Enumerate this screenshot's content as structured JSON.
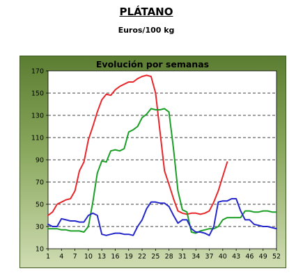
{
  "header": {
    "title": "PLÁTANO",
    "subtitle": "Euros/100 kg"
  },
  "chart_data": {
    "type": "line",
    "title": "Evolución por semanas",
    "xlabel": "",
    "ylabel": "",
    "xlim": [
      1,
      52
    ],
    "ylim": [
      10,
      170
    ],
    "x_ticks": [
      1,
      4,
      7,
      10,
      13,
      16,
      19,
      22,
      25,
      28,
      31,
      34,
      37,
      40,
      43,
      46,
      49,
      52
    ],
    "y_ticks": [
      10,
      30,
      50,
      70,
      90,
      110,
      130,
      150,
      170
    ],
    "grid": true,
    "legend": "none",
    "series": [
      {
        "color": "#e8262a",
        "points": [
          [
            1,
            40
          ],
          [
            2,
            43
          ],
          [
            3,
            50
          ],
          [
            4,
            52
          ],
          [
            5,
            54
          ],
          [
            6,
            55
          ],
          [
            7,
            62
          ],
          [
            8,
            80
          ],
          [
            9,
            88
          ],
          [
            10,
            108
          ],
          [
            11,
            120
          ],
          [
            12,
            133
          ],
          [
            13,
            144
          ],
          [
            14,
            149
          ],
          [
            15,
            148
          ],
          [
            16,
            153
          ],
          [
            17,
            156
          ],
          [
            18,
            158
          ],
          [
            19,
            160
          ],
          [
            20,
            160
          ],
          [
            21,
            163
          ],
          [
            22,
            165
          ],
          [
            23,
            166
          ],
          [
            24,
            165
          ],
          [
            25,
            150
          ],
          [
            26,
            115
          ],
          [
            27,
            80
          ],
          [
            28,
            68
          ],
          [
            29,
            55
          ],
          [
            30,
            44
          ],
          [
            31,
            42
          ],
          [
            32,
            41
          ],
          [
            33,
            42
          ],
          [
            34,
            42
          ],
          [
            35,
            41
          ],
          [
            36,
            42
          ],
          [
            37,
            44
          ],
          [
            38,
            52
          ],
          [
            39,
            62
          ],
          [
            40,
            75
          ],
          [
            41,
            88
          ]
        ]
      },
      {
        "color": "#1a9e25",
        "points": [
          [
            1,
            28
          ],
          [
            2,
            28
          ],
          [
            3,
            28
          ],
          [
            4,
            27
          ],
          [
            5,
            27
          ],
          [
            6,
            26
          ],
          [
            7,
            26
          ],
          [
            8,
            26
          ],
          [
            9,
            25
          ],
          [
            10,
            30
          ],
          [
            11,
            52
          ],
          [
            12,
            78
          ],
          [
            13,
            89
          ],
          [
            14,
            88
          ],
          [
            15,
            98
          ],
          [
            16,
            99
          ],
          [
            17,
            98
          ],
          [
            18,
            100
          ],
          [
            19,
            115
          ],
          [
            20,
            117
          ],
          [
            21,
            120
          ],
          [
            22,
            128
          ],
          [
            23,
            131
          ],
          [
            24,
            136
          ],
          [
            25,
            135
          ],
          [
            26,
            135
          ],
          [
            27,
            136
          ],
          [
            28,
            133
          ],
          [
            29,
            100
          ],
          [
            30,
            62
          ],
          [
            31,
            45
          ],
          [
            32,
            43
          ],
          [
            33,
            25
          ],
          [
            34,
            24
          ],
          [
            35,
            26
          ],
          [
            36,
            27
          ],
          [
            37,
            28
          ],
          [
            38,
            28
          ],
          [
            39,
            30
          ],
          [
            40,
            36
          ],
          [
            41,
            38
          ],
          [
            42,
            38
          ],
          [
            43,
            38
          ],
          [
            44,
            38
          ],
          [
            45,
            44
          ],
          [
            46,
            44
          ],
          [
            47,
            43
          ],
          [
            48,
            43
          ],
          [
            49,
            44
          ],
          [
            50,
            44
          ],
          [
            51,
            43
          ],
          [
            52,
            43
          ]
        ]
      },
      {
        "color": "#2326c9",
        "points": [
          [
            1,
            32
          ],
          [
            2,
            30
          ],
          [
            3,
            30
          ],
          [
            4,
            37
          ],
          [
            5,
            36
          ],
          [
            6,
            35
          ],
          [
            7,
            35
          ],
          [
            8,
            34
          ],
          [
            9,
            34
          ],
          [
            10,
            40
          ],
          [
            11,
            42
          ],
          [
            12,
            40
          ],
          [
            13,
            23
          ],
          [
            14,
            22
          ],
          [
            15,
            23
          ],
          [
            16,
            24
          ],
          [
            17,
            24
          ],
          [
            18,
            23
          ],
          [
            19,
            23
          ],
          [
            20,
            22
          ],
          [
            21,
            30
          ],
          [
            22,
            36
          ],
          [
            23,
            46
          ],
          [
            24,
            52
          ],
          [
            25,
            52
          ],
          [
            26,
            51
          ],
          [
            27,
            51
          ],
          [
            28,
            48
          ],
          [
            29,
            40
          ],
          [
            30,
            33
          ],
          [
            31,
            36
          ],
          [
            32,
            36
          ],
          [
            33,
            28
          ],
          [
            34,
            25
          ],
          [
            35,
            25
          ],
          [
            36,
            24
          ],
          [
            37,
            22
          ],
          [
            38,
            30
          ],
          [
            39,
            52
          ],
          [
            40,
            53
          ],
          [
            41,
            53
          ],
          [
            42,
            55
          ],
          [
            43,
            55
          ],
          [
            44,
            44
          ],
          [
            45,
            36
          ],
          [
            46,
            36
          ],
          [
            47,
            32
          ],
          [
            48,
            31
          ],
          [
            49,
            30
          ],
          [
            50,
            30
          ],
          [
            51,
            29
          ],
          [
            52,
            28
          ]
        ]
      }
    ]
  }
}
